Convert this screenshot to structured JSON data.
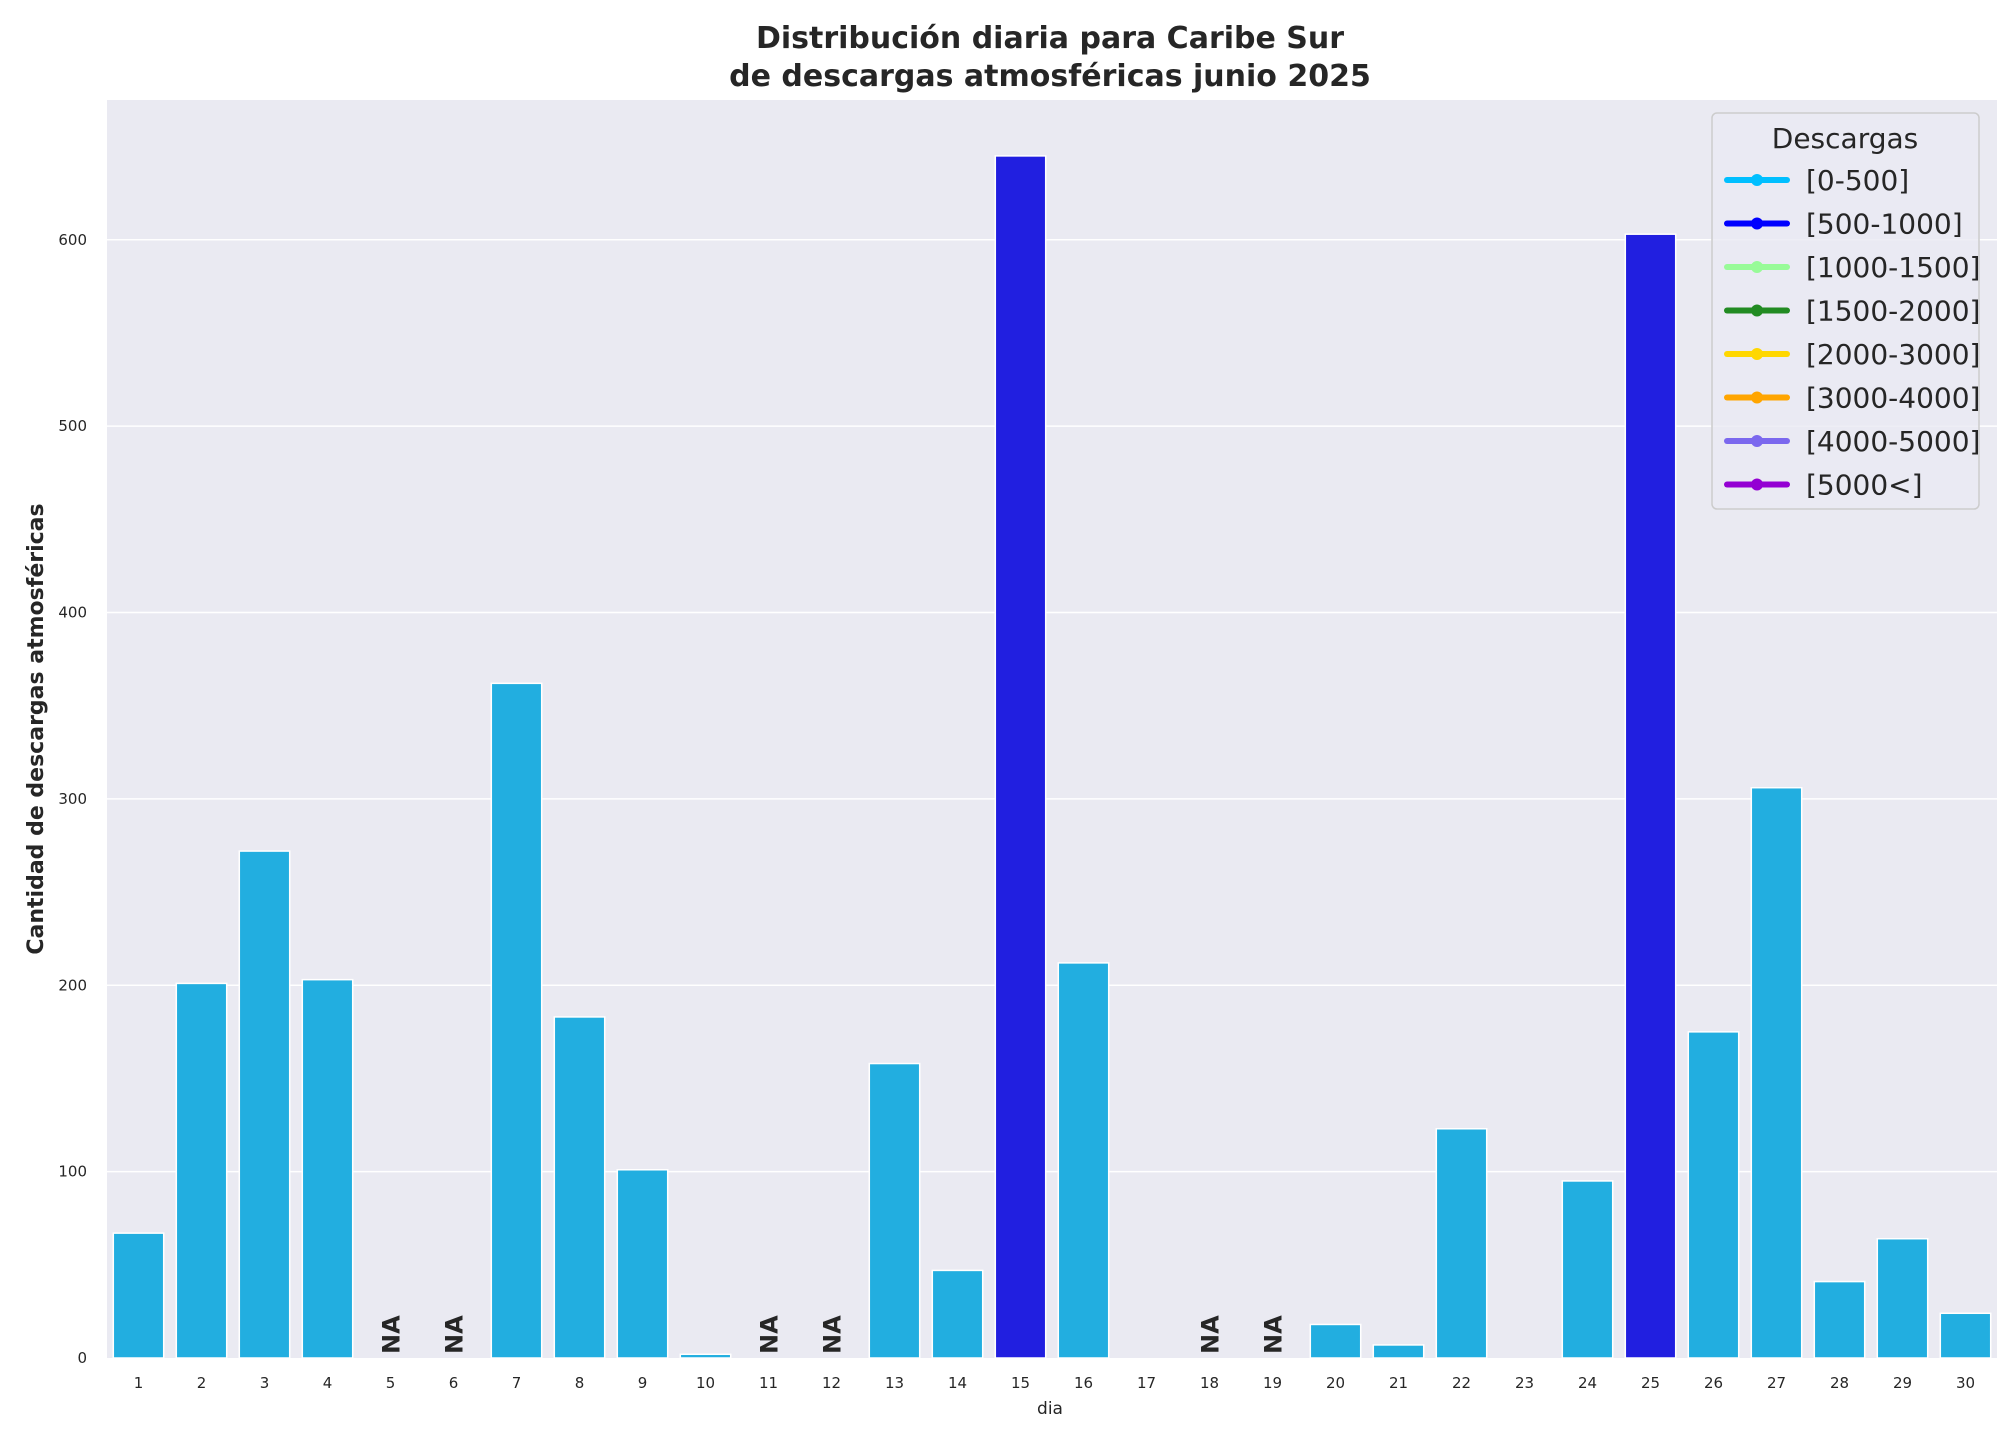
{
  "chart_data": {
    "type": "bar",
    "title_line1": "Distribución diaria para Caribe Sur",
    "title_line2": "de descargas atmosféricas junio 2025",
    "xlabel": "dia",
    "ylabel": "Cantidad de descargas atmosféricas",
    "ylim": [
      0,
      675
    ],
    "yticks": [
      0,
      100,
      200,
      300,
      400,
      500,
      600
    ],
    "grid": true,
    "legend_placement": "top-right",
    "plot_background": "#eaeaf2",
    "categories": [
      "1",
      "2",
      "3",
      "4",
      "5",
      "6",
      "7",
      "8",
      "9",
      "10",
      "11",
      "12",
      "13",
      "14",
      "15",
      "16",
      "17",
      "18",
      "19",
      "20",
      "21",
      "22",
      "23",
      "24",
      "25",
      "26",
      "27",
      "28",
      "29",
      "30"
    ],
    "values": [
      67,
      201,
      272,
      203,
      null,
      null,
      362,
      183,
      101,
      2,
      null,
      null,
      158,
      47,
      645,
      212,
      0,
      null,
      null,
      18,
      7,
      123,
      0,
      95,
      603,
      175,
      306,
      41,
      64,
      24
    ],
    "missing_label": "NA",
    "bar_colors": {
      "[0-500]": "#22aee0",
      "[500-1000]": "#211fe0"
    },
    "legend": {
      "title": "Descargas",
      "items": [
        {
          "label": "[0-500]",
          "color": "#00bfff"
        },
        {
          "label": "[500-1000]",
          "color": "#0000ff"
        },
        {
          "label": "[1000-1500]",
          "color": "#98fb98"
        },
        {
          "label": "[1500-2000]",
          "color": "#228b22"
        },
        {
          "label": "[2000-3000]",
          "color": "#ffd700"
        },
        {
          "label": "[3000-4000]",
          "color": "#ffa500"
        },
        {
          "label": "[4000-5000]",
          "color": "#7b68ee"
        },
        {
          "label": "[5000<]",
          "color": "#9400d3"
        }
      ]
    }
  }
}
